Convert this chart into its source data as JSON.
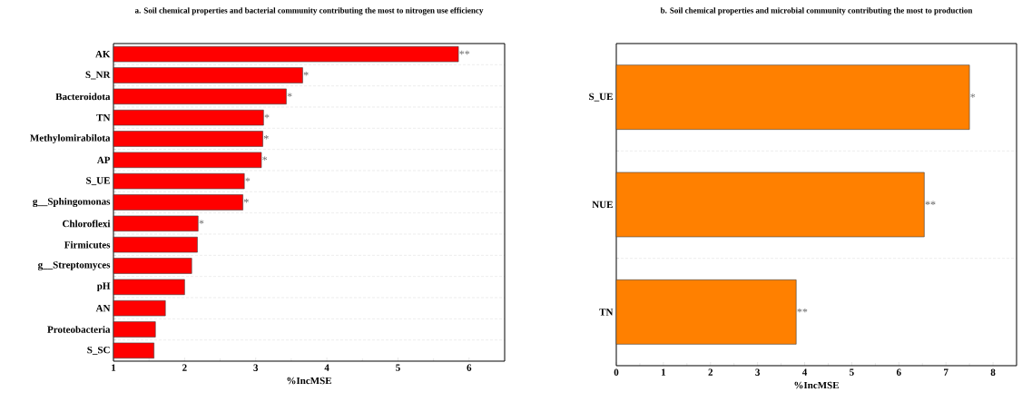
{
  "chart_data": [
    {
      "type": "bar",
      "orientation": "horizontal",
      "title": "a. Soil chemical properties and bacterial community contributing the most to nitrogen use efficiency",
      "xlabel": "%IncMSE",
      "categories": [
        "AK",
        "S_NR",
        "Bacteroidota",
        "TN",
        "Methylomirabilota",
        "AP",
        "S_UE",
        "g__Sphingomonas",
        "Chloroflexi",
        "Firmicutes",
        "g__Streptomyces",
        "pH",
        "AN",
        "Proteobacteria",
        "S_SC"
      ],
      "values": [
        5.85,
        3.66,
        3.43,
        3.11,
        3.1,
        3.08,
        2.84,
        2.82,
        2.19,
        2.18,
        2.1,
        2.0,
        1.73,
        1.59,
        1.57
      ],
      "value_labels": [
        "**",
        "*",
        "*",
        "*",
        "*",
        "*",
        "*",
        "*",
        "*",
        null,
        null,
        null,
        null,
        null,
        null
      ],
      "color": "#ff0000",
      "xlim": [
        1,
        6.5
      ],
      "xticks": [
        1,
        2,
        3,
        4,
        5,
        6
      ],
      "grid": "y"
    },
    {
      "type": "bar",
      "orientation": "horizontal",
      "title": "b. Soil chemical properties and microbial community contributing the most to production",
      "xlabel": "%IncMSE",
      "categories": [
        "S_UE",
        "NUE",
        "TN"
      ],
      "values": [
        7.5,
        6.54,
        3.82
      ],
      "value_labels": [
        "*",
        "**",
        "**"
      ],
      "color": "#ff8000",
      "xlim": [
        0,
        8.5
      ],
      "xticks": [
        0,
        1,
        2,
        3,
        4,
        5,
        6,
        7,
        8
      ],
      "grid": "y"
    }
  ]
}
